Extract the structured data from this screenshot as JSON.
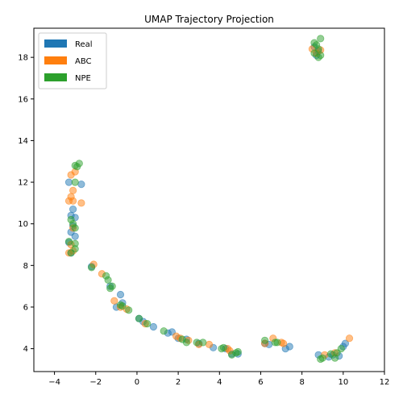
{
  "chart_data": {
    "type": "scatter",
    "title": "UMAP Trajectory Projection",
    "xlabel": "",
    "ylabel": "",
    "xlim": [
      -5,
      12
    ],
    "ylim": [
      2.9,
      19.4
    ],
    "xticks": [
      -4,
      -2,
      0,
      2,
      4,
      6,
      8,
      10,
      12
    ],
    "yticks": [
      4,
      6,
      8,
      10,
      12,
      14,
      16,
      18
    ],
    "grid": false,
    "legend": "upper-left",
    "series": [
      {
        "name": "Real",
        "color": "#1f77b4",
        "points": [
          [
            -3.3,
            12.0
          ],
          [
            -2.7,
            11.9
          ],
          [
            -3.1,
            10.7
          ],
          [
            -3.0,
            10.3
          ],
          [
            -3.2,
            10.4
          ],
          [
            -3.2,
            9.6
          ],
          [
            -3.0,
            9.4
          ],
          [
            -3.1,
            9.9
          ],
          [
            -3.3,
            9.1
          ],
          [
            -3.2,
            8.6
          ],
          [
            -2.2,
            7.95
          ],
          [
            -1.3,
            7.0
          ],
          [
            -0.8,
            6.6
          ],
          [
            -1.0,
            6.0
          ],
          [
            -0.7,
            6.2
          ],
          [
            0.1,
            5.45
          ],
          [
            0.3,
            5.3
          ],
          [
            0.8,
            5.05
          ],
          [
            1.5,
            4.75
          ],
          [
            1.7,
            4.8
          ],
          [
            2.0,
            4.5
          ],
          [
            2.4,
            4.45
          ],
          [
            3.0,
            4.25
          ],
          [
            3.7,
            4.05
          ],
          [
            4.3,
            4.0
          ],
          [
            4.6,
            3.75
          ],
          [
            4.9,
            3.75
          ],
          [
            6.2,
            4.25
          ],
          [
            6.4,
            4.2
          ],
          [
            7.2,
            4.0
          ],
          [
            7.4,
            4.1
          ],
          [
            8.8,
            3.7
          ],
          [
            9.3,
            3.6
          ],
          [
            9.5,
            3.7
          ],
          [
            9.8,
            3.65
          ],
          [
            10.0,
            4.1
          ],
          [
            10.1,
            4.25
          ],
          [
            8.6,
            18.5
          ],
          [
            8.8,
            18.3
          ],
          [
            8.7,
            18.1
          ]
        ]
      },
      {
        "name": "ABC",
        "color": "#ff7f0e",
        "points": [
          [
            -3.2,
            12.35
          ],
          [
            -3.0,
            12.5
          ],
          [
            -3.1,
            11.6
          ],
          [
            -3.2,
            11.3
          ],
          [
            -3.1,
            11.1
          ],
          [
            -3.3,
            11.1
          ],
          [
            -2.7,
            11.0
          ],
          [
            -3.1,
            9.8
          ],
          [
            -3.2,
            9.0
          ],
          [
            -3.3,
            8.6
          ],
          [
            -3.1,
            8.7
          ],
          [
            -2.1,
            8.05
          ],
          [
            -1.7,
            7.6
          ],
          [
            -1.1,
            6.3
          ],
          [
            -0.8,
            6.0
          ],
          [
            -0.5,
            5.9
          ],
          [
            0.4,
            5.2
          ],
          [
            1.9,
            4.6
          ],
          [
            2.1,
            4.5
          ],
          [
            2.5,
            4.4
          ],
          [
            3.0,
            4.2
          ],
          [
            3.5,
            4.2
          ],
          [
            4.4,
            4.0
          ],
          [
            4.5,
            3.9
          ],
          [
            6.2,
            4.25
          ],
          [
            6.6,
            4.5
          ],
          [
            7.0,
            4.3
          ],
          [
            7.1,
            4.25
          ],
          [
            9.1,
            3.7
          ],
          [
            9.6,
            3.8
          ],
          [
            10.3,
            4.5
          ],
          [
            8.5,
            18.4
          ],
          [
            8.9,
            18.35
          ],
          [
            8.7,
            18.2
          ]
        ]
      },
      {
        "name": "NPE",
        "color": "#2ca02c",
        "points": [
          [
            -3.0,
            12.8
          ],
          [
            -2.9,
            12.75
          ],
          [
            -2.8,
            12.9
          ],
          [
            -3.0,
            12.0
          ],
          [
            -3.2,
            10.2
          ],
          [
            -3.1,
            10.0
          ],
          [
            -3.0,
            9.8
          ],
          [
            -3.3,
            9.15
          ],
          [
            -3.0,
            9.05
          ],
          [
            -3.0,
            8.8
          ],
          [
            -3.2,
            8.6
          ],
          [
            -2.2,
            7.9
          ],
          [
            -1.5,
            7.5
          ],
          [
            -1.4,
            7.3
          ],
          [
            -1.2,
            7.0
          ],
          [
            -1.3,
            6.9
          ],
          [
            -0.8,
            6.1
          ],
          [
            -0.7,
            6.05
          ],
          [
            -0.4,
            5.85
          ],
          [
            0.1,
            5.45
          ],
          [
            0.5,
            5.2
          ],
          [
            1.3,
            4.85
          ],
          [
            2.2,
            4.45
          ],
          [
            2.4,
            4.3
          ],
          [
            2.9,
            4.3
          ],
          [
            3.2,
            4.3
          ],
          [
            4.1,
            4.0
          ],
          [
            4.2,
            4.05
          ],
          [
            4.6,
            3.7
          ],
          [
            4.8,
            3.8
          ],
          [
            4.9,
            3.85
          ],
          [
            6.2,
            4.4
          ],
          [
            6.7,
            4.3
          ],
          [
            6.8,
            4.3
          ],
          [
            8.9,
            3.5
          ],
          [
            9.0,
            3.55
          ],
          [
            9.4,
            3.75
          ],
          [
            9.6,
            3.55
          ],
          [
            9.7,
            3.8
          ],
          [
            9.9,
            4.0
          ],
          [
            8.6,
            18.7
          ],
          [
            8.9,
            18.9
          ],
          [
            8.7,
            18.6
          ],
          [
            8.8,
            18.0
          ],
          [
            8.6,
            18.2
          ],
          [
            8.9,
            18.1
          ],
          [
            8.8,
            18.4
          ]
        ]
      }
    ]
  }
}
